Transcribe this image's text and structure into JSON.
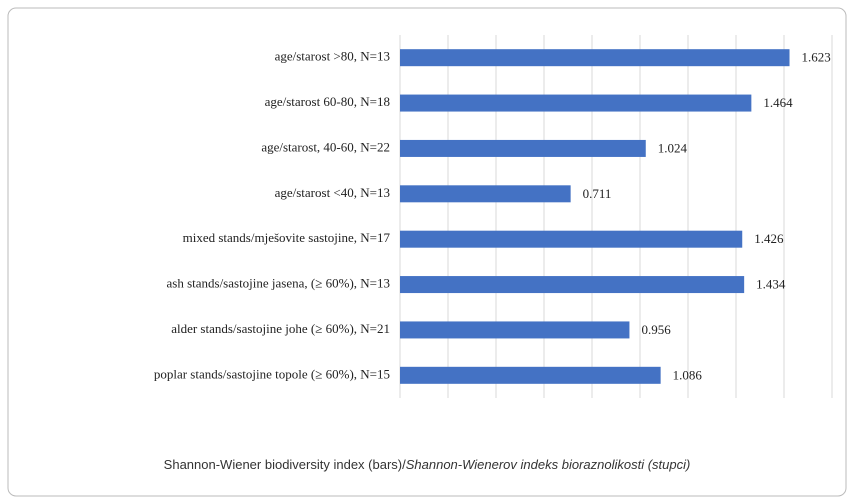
{
  "chart_data": {
    "type": "bar",
    "orientation": "horizontal",
    "title": "Shannon-Wiener biodiversity index (bars)/",
    "title_translation": "Shannon-Wienerov indeks bioraznolikosti (stupci)",
    "categories": [
      "age/starost >80, N=13",
      "age/starost 60-80, N=18",
      "age/starost, 40-60, N=22",
      "age/starost <40, N=13",
      "mixed stands/mješovite sastojine, N=17",
      "ash stands/sastojine jasena, (≥ 60%),  N=13",
      "alder stands/sastojine johe (≥ 60%),  N=21",
      "poplar stands/sastojine topole (≥ 60%),  N=15"
    ],
    "values": [
      1.623,
      1.464,
      1.024,
      0.711,
      1.426,
      1.434,
      0.956,
      1.086
    ],
    "color": "#4472c4",
    "xlim": [
      0,
      1.8
    ],
    "xticks": [
      0,
      0.2,
      0.4,
      0.6,
      0.8,
      1,
      1.2,
      1.4,
      1.6,
      1.8
    ],
    "grid": true
  }
}
